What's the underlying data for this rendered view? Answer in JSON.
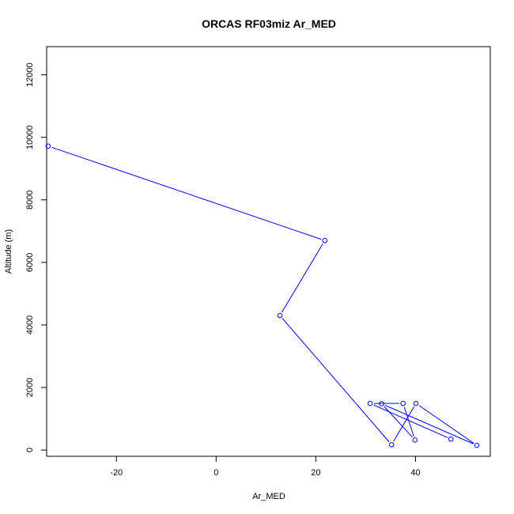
{
  "chart_data": {
    "type": "line",
    "title": "ORCAS RF03miz Ar_MED",
    "xlabel": "Ar_MED",
    "ylabel": "Altitude (m)",
    "xlim": [
      -34,
      55
    ],
    "ylim": [
      -200,
      12900
    ],
    "xticks": [
      -20,
      0,
      20,
      40
    ],
    "yticks": [
      0,
      2000,
      4000,
      6000,
      8000,
      10000,
      12000
    ],
    "markers": "open-circle",
    "grid": false,
    "legend": "none",
    "series": [
      {
        "color": "#0000ff",
        "points": [
          {
            "x": -33.7,
            "y": 9720
          },
          {
            "x": 21.8,
            "y": 6700
          },
          {
            "x": 12.8,
            "y": 4300
          },
          {
            "x": 35.2,
            "y": 170
          },
          {
            "x": 40.1,
            "y": 1490
          },
          {
            "x": 52.3,
            "y": 150
          },
          {
            "x": 33.2,
            "y": 1480
          },
          {
            "x": 39.9,
            "y": 320
          },
          {
            "x": 37.5,
            "y": 1490
          },
          {
            "x": 30.9,
            "y": 1490
          },
          {
            "x": 47.1,
            "y": 350
          }
        ]
      }
    ]
  }
}
